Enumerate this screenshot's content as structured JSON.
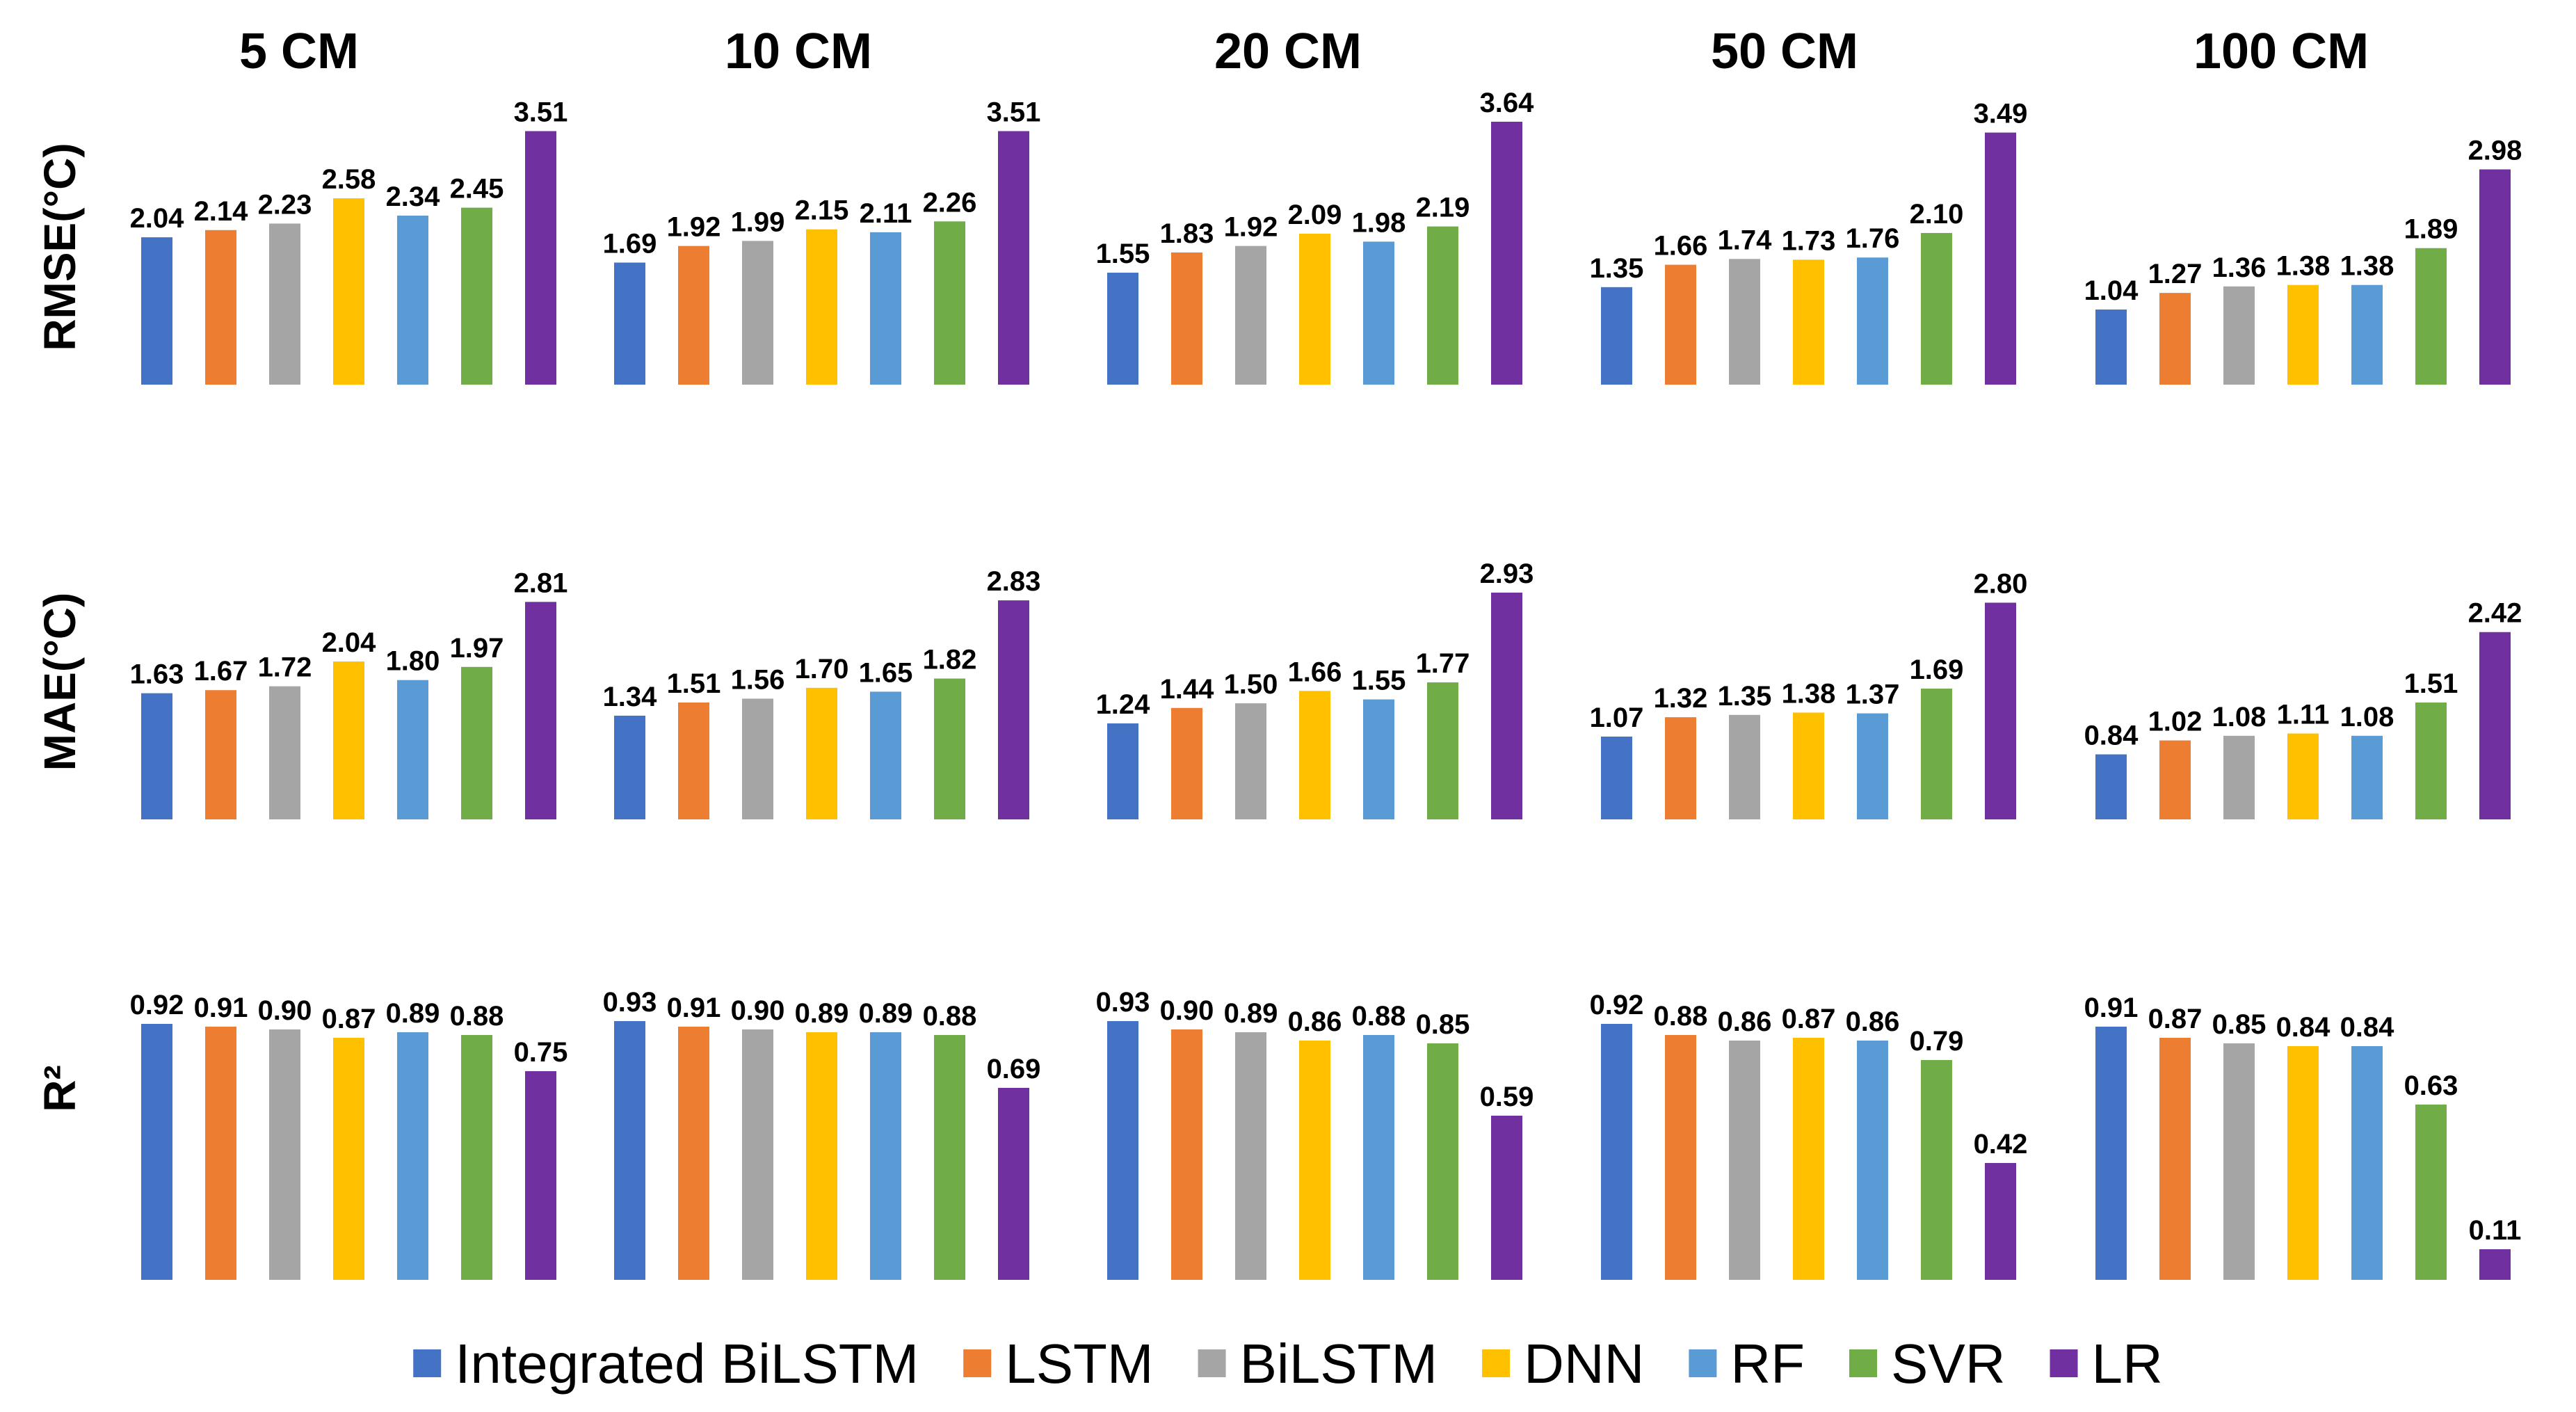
{
  "chart_data": {
    "type": "bar",
    "column_titles": [
      "5 CM",
      "10 CM",
      "20 CM",
      "50 CM",
      "100 CM"
    ],
    "row_labels": [
      "RMSE(°C)",
      "MAE(°C)",
      "R²"
    ],
    "series_names": [
      "Integrated BiLSTM",
      "LSTM",
      "BiLSTM",
      "DNN",
      "RF",
      "SVR",
      "LR"
    ],
    "colors": [
      "#4472C4",
      "#ED7D31",
      "#A5A5A5",
      "#FFC000",
      "#5B9BD5",
      "#70AD47",
      "#7030A0"
    ],
    "legend_position": "bottom",
    "metrics": [
      {
        "name": "RMSE(°C)",
        "ylim": [
          0,
          3.64
        ],
        "values": [
          [
            "2.04",
            "2.14",
            "2.23",
            "2.58",
            "2.34",
            "2.45",
            "3.51"
          ],
          [
            "1.69",
            "1.92",
            "1.99",
            "2.15",
            "2.11",
            "2.26",
            "3.51"
          ],
          [
            "1.55",
            "1.83",
            "1.92",
            "2.09",
            "1.98",
            "2.19",
            "3.64"
          ],
          [
            "1.35",
            "1.66",
            "1.74",
            "1.73",
            "1.76",
            "2.10",
            "3.49"
          ],
          [
            "1.04",
            "1.27",
            "1.36",
            "1.38",
            "1.38",
            "1.89",
            "2.98"
          ]
        ]
      },
      {
        "name": "MAE(°C)",
        "ylim": [
          0,
          2.93
        ],
        "values": [
          [
            "1.63",
            "1.67",
            "1.72",
            "2.04",
            "1.80",
            "1.97",
            "2.81"
          ],
          [
            "1.34",
            "1.51",
            "1.56",
            "1.70",
            "1.65",
            "1.82",
            "2.83"
          ],
          [
            "1.24",
            "1.44",
            "1.50",
            "1.66",
            "1.55",
            "1.77",
            "2.93"
          ],
          [
            "1.07",
            "1.32",
            "1.35",
            "1.38",
            "1.37",
            "1.69",
            "2.80"
          ],
          [
            "0.84",
            "1.02",
            "1.08",
            "1.11",
            "1.08",
            "1.51",
            "2.42"
          ]
        ]
      },
      {
        "name": "R²",
        "ylim": [
          0,
          0.93
        ],
        "values": [
          [
            "0.92",
            "0.91",
            "0.90",
            "0.87",
            "0.89",
            "0.88",
            "0.75"
          ],
          [
            "0.93",
            "0.91",
            "0.90",
            "0.89",
            "0.89",
            "0.88",
            "0.69"
          ],
          [
            "0.93",
            "0.90",
            "0.89",
            "0.86",
            "0.88",
            "0.85",
            "0.59"
          ],
          [
            "0.92",
            "0.88",
            "0.86",
            "0.87",
            "0.86",
            "0.79",
            "0.42"
          ],
          [
            "0.91",
            "0.87",
            "0.85",
            "0.84",
            "0.84",
            "0.63",
            "0.11"
          ]
        ]
      }
    ]
  }
}
